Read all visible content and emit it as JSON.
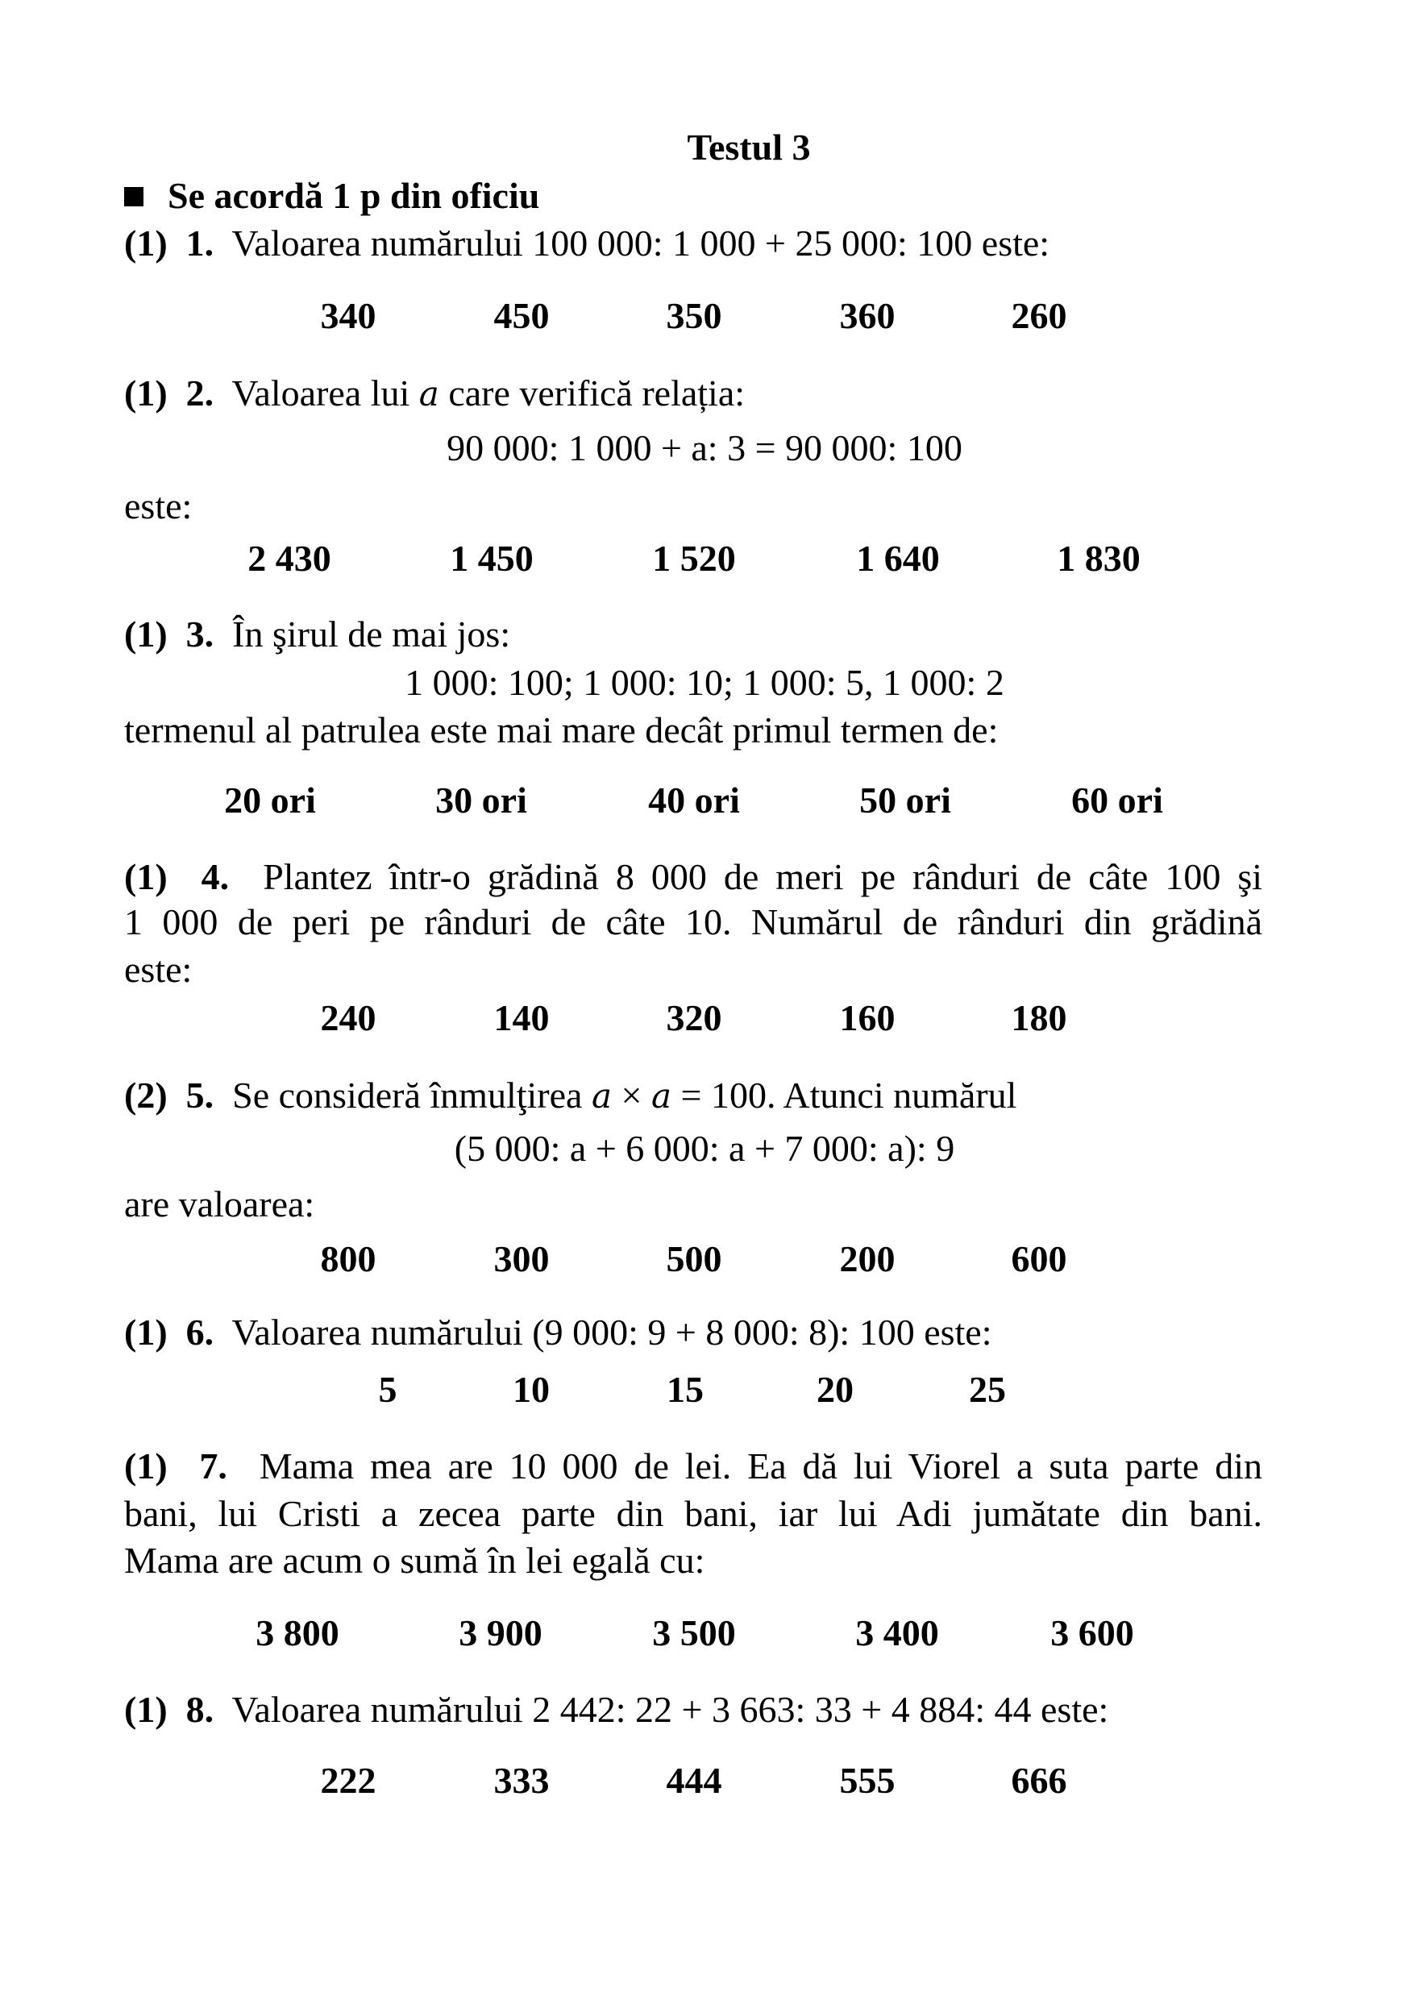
{
  "title": "Testul 3",
  "header": "Se acordă 1 p din oficiu",
  "header_icon": "black-square-bullet",
  "questions": [
    {
      "points": "(1)",
      "number": "1.",
      "lines": [
        {
          "text": "Valoarea numărului 100 000: 1 000 + 25 000: 100 este:"
        }
      ],
      "options": [
        "340",
        "450",
        "350",
        "360",
        "260"
      ]
    },
    {
      "points": "(1)",
      "number": "2.",
      "lines": [
        {
          "text": "Valoarea lui a care verifică relația:",
          "math": true
        },
        {
          "text": "90 000: 1 000 + a: 3 = 90 000: 100",
          "math": true,
          "center": true
        },
        {
          "text": "este:"
        }
      ],
      "options": [
        "2 430",
        "1 450",
        "1 520",
        "1 640",
        "1 830"
      ]
    },
    {
      "points": "(1)",
      "number": "3.",
      "lines": [
        {
          "text": "În şirul de mai jos:"
        },
        {
          "text": "1 000: 100;  1 000: 10;  1 000: 5, 1 000: 2",
          "center": true,
          "mathnum": true
        },
        {
          "text": "termenul al patrulea este mai mare decât primul termen de:"
        }
      ],
      "options": [
        "20 ori",
        "30 ori",
        "40 ori",
        "50 ori",
        "60 ori"
      ]
    },
    {
      "points": "(1)",
      "number": "4.",
      "lines": [
        {
          "text": "Plantez într-o grădină 8 000 de meri pe rânduri de câte 100 şi",
          "justify": true
        },
        {
          "text": "1 000 de peri pe rânduri de câte 10. Numărul de rânduri din grădină",
          "justify": true
        },
        {
          "text": "este:"
        }
      ],
      "options": [
        "240",
        "140",
        "320",
        "160",
        "180"
      ]
    },
    {
      "points": "(2)",
      "number": "5.",
      "lines": [
        {
          "text": "Se consideră înmulţirea a × a = 100. Atunci numărul",
          "math": true
        },
        {
          "text": "(5 000: a + 6 000: a + 7 000: a): 9",
          "math": true,
          "center": true
        },
        {
          "text": "are valoarea:"
        }
      ],
      "options": [
        "800",
        "300",
        "500",
        "200",
        "600"
      ]
    },
    {
      "points": "(1)",
      "number": "6.",
      "lines": [
        {
          "text": "Valoarea numărului (9 000: 9 + 8 000: 8): 100 este:"
        }
      ],
      "options": [
        "5",
        "10",
        "15",
        "20",
        "25"
      ]
    },
    {
      "points": "(1)",
      "number": "7.",
      "lines": [
        {
          "text": "Mama mea are 10 000 de lei. Ea dă lui Viorel a suta parte din",
          "justify": true
        },
        {
          "text": "bani, lui Cristi a zecea parte din bani, iar lui Adi jumătate din bani.",
          "justify": true
        },
        {
          "text": "Mama are acum o sumă în lei egală cu:"
        }
      ],
      "options": [
        "3 800",
        "3 900",
        "3 500",
        "3 400",
        "3 600"
      ]
    },
    {
      "points": "(1)",
      "number": "8.",
      "lines": [
        {
          "text": "Valoarea numărului 2 442: 22 + 3 663: 33 + 4 884: 44  este:"
        }
      ],
      "options": [
        "222",
        "333",
        "444",
        "555",
        "666"
      ]
    }
  ]
}
